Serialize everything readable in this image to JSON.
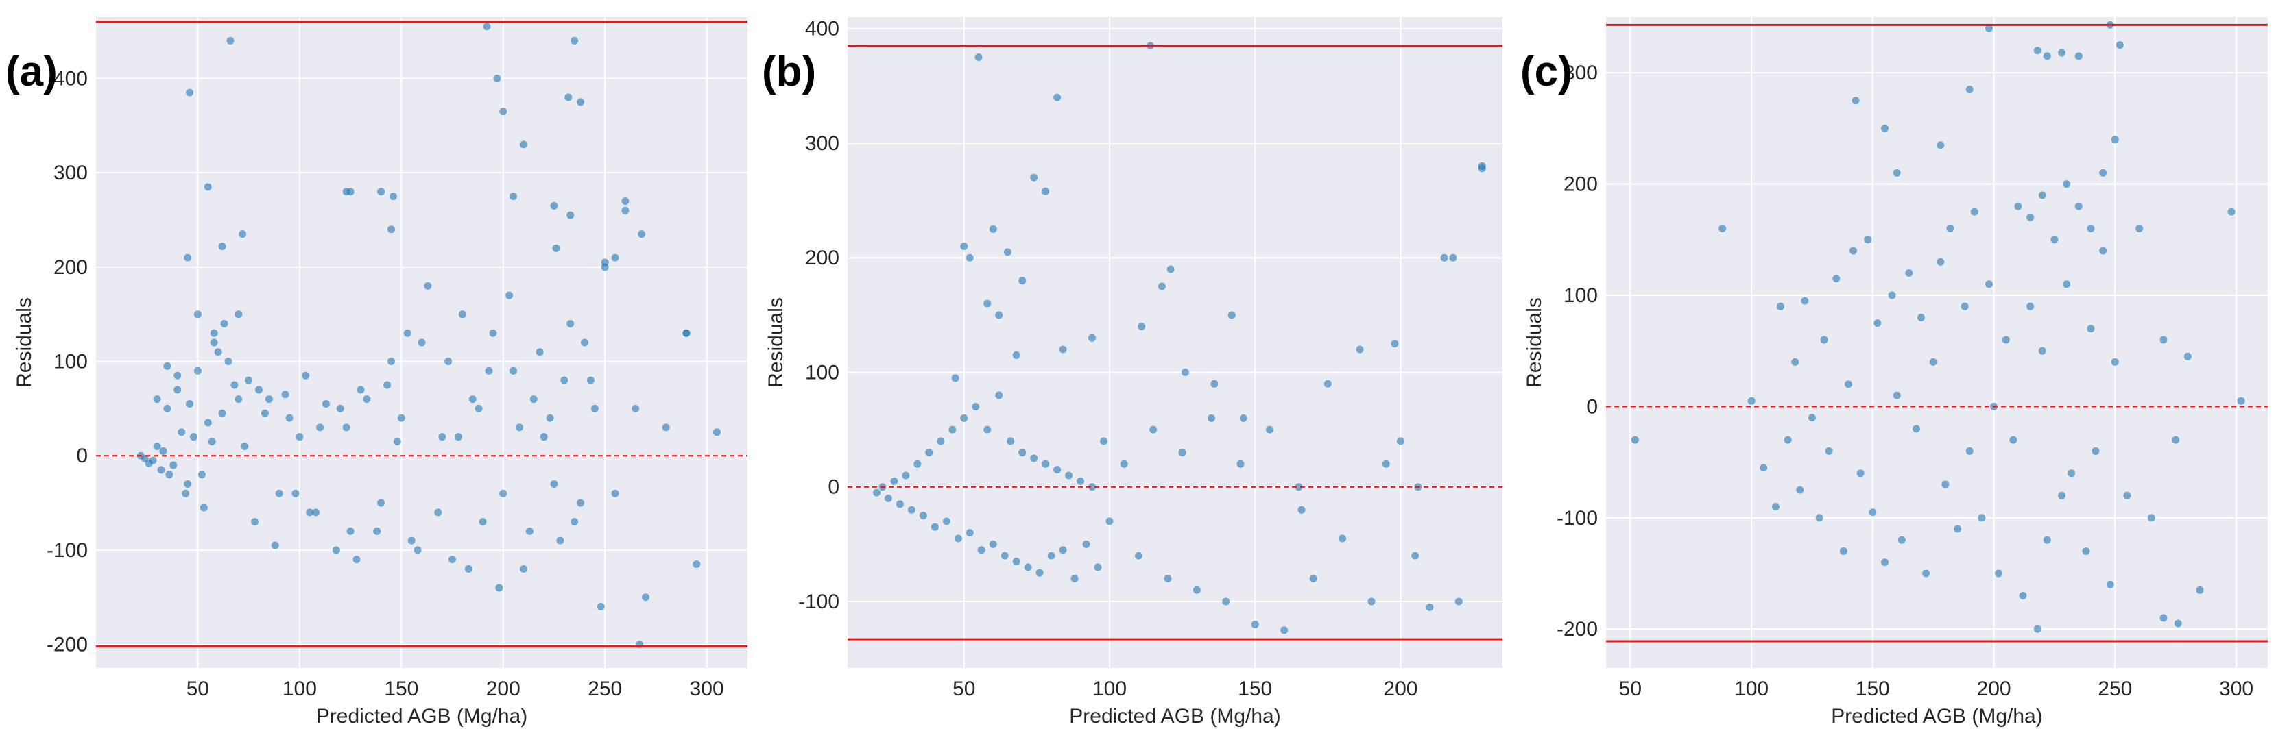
{
  "chart_data": [
    {
      "type": "scatter",
      "panel_label": "(a)",
      "xlabel": "Predicted AGB (Mg/ha)",
      "ylabel": "Residuals",
      "xlim": [
        0,
        320
      ],
      "ylim": [
        -225,
        465
      ],
      "xticks": [
        50,
        100,
        150,
        200,
        250,
        300
      ],
      "yticks": [
        -200,
        -100,
        0,
        100,
        200,
        300,
        400
      ],
      "zero_line": {
        "y": 0,
        "color": "#ff0000",
        "style": "dashed"
      },
      "limit_lines": [
        {
          "y": 460,
          "color": "#e41a1c"
        },
        {
          "y": -202,
          "color": "#e41a1c"
        }
      ],
      "point_color": "#1f77b4",
      "grid": true,
      "x": [
        48,
        55,
        70,
        52,
        45,
        38,
        62,
        57,
        33,
        42,
        35,
        28,
        26,
        24,
        22,
        30,
        40,
        50,
        60,
        65,
        75,
        80,
        85,
        90,
        95,
        100,
        105,
        110,
        120,
        125,
        130,
        140,
        145,
        150,
        155,
        160,
        170,
        175,
        180,
        185,
        190,
        195,
        200,
        205,
        210,
        215,
        220,
        225,
        230,
        235,
        240,
        245,
        250,
        255,
        260,
        265,
        270,
        280,
        290,
        295,
        305,
        32,
        36,
        44,
        46,
        53,
        58,
        63,
        68,
        73,
        78,
        83,
        88,
        93,
        98,
        103,
        108,
        113,
        118,
        123,
        128,
        133,
        138,
        143,
        148,
        153,
        158,
        163,
        168,
        173,
        178,
        183,
        188,
        193,
        198,
        203,
        208,
        213,
        218,
        223,
        228,
        233,
        238,
        243,
        248,
        66,
        46,
        55,
        192,
        235,
        238,
        197,
        200,
        205,
        233,
        72,
        123,
        146,
        125,
        140,
        145,
        260,
        255,
        250,
        268,
        225,
        232,
        226,
        210,
        267,
        290,
        45,
        62,
        50,
        70,
        58,
        40,
        35,
        30
      ],
      "y": [
        20,
        35,
        60,
        -20,
        -30,
        -10,
        45,
        15,
        5,
        25,
        50,
        -5,
        -8,
        -3,
        0,
        10,
        70,
        90,
        110,
        100,
        80,
        70,
        60,
        -40,
        40,
        20,
        -60,
        30,
        50,
        -80,
        70,
        -50,
        100,
        40,
        -90,
        120,
        20,
        -110,
        150,
        60,
        -70,
        130,
        -40,
        90,
        -120,
        60,
        20,
        -30,
        80,
        -70,
        120,
        50,
        200,
        -40,
        270,
        50,
        -150,
        30,
        130,
        -115,
        25,
        -15,
        -20,
        -40,
        55,
        -55,
        120,
        140,
        75,
        10,
        -70,
        45,
        -95,
        65,
        -40,
        85,
        -60,
        55,
        -100,
        30,
        -110,
        60,
        -80,
        75,
        15,
        130,
        -100,
        180,
        -60,
        100,
        20,
        -120,
        50,
        90,
        -140,
        170,
        30,
        -80,
        110,
        40,
        -90,
        140,
        -50,
        80,
        -160,
        440,
        385,
        285,
        455,
        440,
        375,
        400,
        365,
        275,
        255,
        235,
        280,
        275,
        280,
        280,
        240,
        260,
        210,
        205,
        235,
        265,
        380,
        220,
        330,
        -200,
        130,
        210,
        222,
        150,
        150,
        130,
        85,
        95,
        60
      ]
    },
    {
      "type": "scatter",
      "panel_label": "(b)",
      "xlabel": "Predicted AGB (Mg/ha)",
      "ylabel": "Residuals",
      "xlim": [
        10,
        235
      ],
      "ylim": [
        -158,
        410
      ],
      "xticks": [
        50,
        100,
        150,
        200
      ],
      "yticks": [
        -100,
        0,
        100,
        200,
        300,
        400
      ],
      "zero_line": {
        "y": 0,
        "color": "#ff0000",
        "style": "dashed"
      },
      "limit_lines": [
        {
          "y": 385,
          "color": "#e41a1c"
        },
        {
          "y": -133,
          "color": "#e41a1c"
        }
      ],
      "point_color": "#1f77b4",
      "grid": true,
      "x": [
        20,
        22,
        24,
        26,
        28,
        30,
        32,
        34,
        36,
        38,
        40,
        42,
        44,
        46,
        48,
        50,
        52,
        54,
        56,
        58,
        60,
        62,
        64,
        66,
        68,
        70,
        72,
        74,
        76,
        78,
        80,
        82,
        84,
        86,
        88,
        90,
        92,
        94,
        96,
        98,
        100,
        105,
        110,
        115,
        120,
        125,
        130,
        135,
        140,
        145,
        150,
        155,
        160,
        165,
        170,
        175,
        180,
        190,
        195,
        200,
        205,
        210,
        215,
        220,
        228,
        55,
        82,
        114,
        74,
        78,
        50,
        52,
        60,
        65,
        70,
        58,
        62,
        118,
        121,
        142,
        218,
        198,
        228,
        47,
        68,
        84,
        94,
        111,
        126,
        136,
        146,
        166,
        186,
        206
      ],
      "y": [
        -5,
        0,
        -10,
        5,
        -15,
        10,
        -20,
        20,
        -25,
        30,
        -35,
        40,
        -30,
        50,
        -45,
        60,
        -40,
        70,
        -55,
        50,
        -50,
        80,
        -60,
        40,
        -65,
        30,
        -70,
        25,
        -75,
        20,
        -60,
        15,
        -55,
        10,
        -80,
        5,
        -50,
        0,
        -70,
        40,
        -30,
        20,
        -60,
        50,
        -80,
        30,
        -90,
        60,
        -100,
        20,
        -120,
        50,
        -125,
        0,
        -80,
        90,
        -45,
        -100,
        20,
        40,
        -60,
        -105,
        200,
        -100,
        280,
        375,
        340,
        385,
        270,
        258,
        210,
        200,
        225,
        205,
        180,
        160,
        150,
        175,
        190,
        150,
        200,
        125,
        278,
        95,
        115,
        120,
        130,
        140,
        100,
        90,
        60,
        -20,
        120,
        0
      ]
    },
    {
      "type": "scatter",
      "panel_label": "(c)",
      "xlabel": "Predicted AGB (Mg/ha)",
      "ylabel": "Residuals",
      "xlim": [
        40,
        313
      ],
      "ylim": [
        -235,
        350
      ],
      "xticks": [
        50,
        100,
        150,
        200,
        250,
        300
      ],
      "yticks": [
        -200,
        -100,
        0,
        100,
        200,
        300
      ],
      "zero_line": {
        "y": 0,
        "color": "#ff0000",
        "style": "dashed"
      },
      "limit_lines": [
        {
          "y": 343,
          "color": "#e41a1c"
        },
        {
          "y": -211,
          "color": "#e41a1c"
        }
      ],
      "point_color": "#1f77b4",
      "grid": true,
      "x": [
        52,
        88,
        100,
        105,
        110,
        112,
        115,
        118,
        120,
        122,
        125,
        128,
        130,
        132,
        135,
        138,
        140,
        142,
        145,
        148,
        150,
        152,
        155,
        158,
        160,
        162,
        165,
        168,
        170,
        172,
        175,
        178,
        180,
        182,
        185,
        188,
        190,
        192,
        195,
        198,
        200,
        202,
        205,
        208,
        210,
        212,
        215,
        218,
        220,
        222,
        225,
        228,
        230,
        232,
        235,
        238,
        240,
        242,
        245,
        248,
        250,
        255,
        260,
        265,
        270,
        275,
        280,
        285,
        298,
        302,
        143,
        155,
        160,
        178,
        190,
        198,
        218,
        222,
        228,
        235,
        245,
        248,
        252,
        220,
        215,
        230,
        240,
        250,
        270,
        276
      ],
      "y": [
        -30,
        160,
        5,
        -55,
        -90,
        90,
        -30,
        40,
        -75,
        95,
        -10,
        -100,
        60,
        -40,
        115,
        -130,
        20,
        140,
        -60,
        150,
        -95,
        75,
        -140,
        100,
        10,
        -120,
        120,
        -20,
        80,
        -150,
        40,
        130,
        -70,
        160,
        -110,
        90,
        -40,
        175,
        -100,
        110,
        0,
        -150,
        60,
        -30,
        180,
        -170,
        90,
        -200,
        50,
        -120,
        150,
        -80,
        110,
        -60,
        180,
        -130,
        70,
        -40,
        140,
        -160,
        40,
        -80,
        160,
        -100,
        60,
        -30,
        45,
        -165,
        175,
        5,
        275,
        250,
        210,
        235,
        285,
        340,
        320,
        315,
        318,
        315,
        210,
        343,
        325,
        190,
        170,
        200,
        160,
        240,
        -190,
        -195
      ]
    }
  ]
}
